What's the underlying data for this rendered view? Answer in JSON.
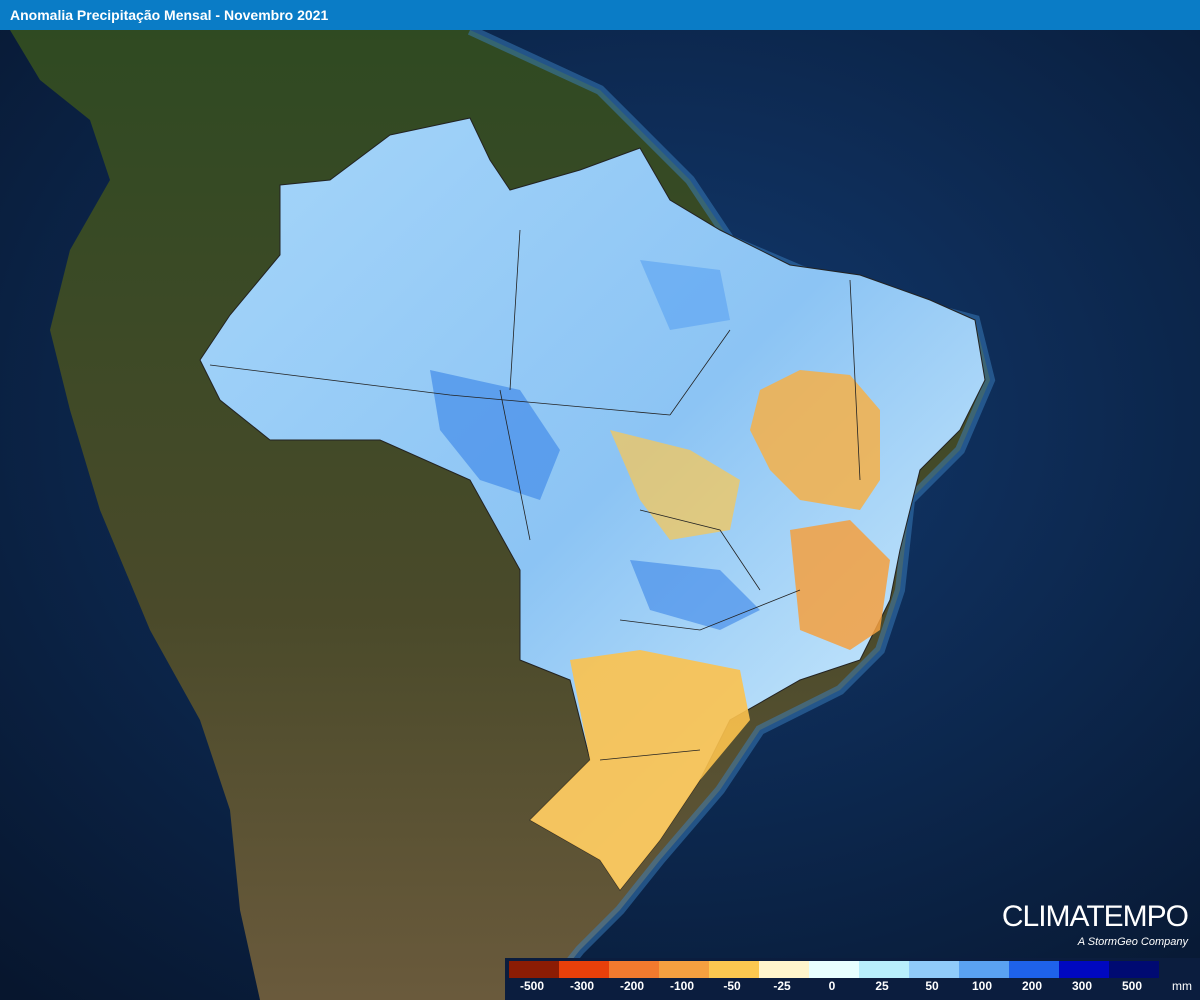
{
  "header": {
    "title": "Anomalia Precipitação Mensal - Novembro 2021"
  },
  "legend": {
    "unit": "mm",
    "classes": [
      {
        "value": -500,
        "color": "#8b1c04"
      },
      {
        "value": -300,
        "color": "#e8400a"
      },
      {
        "value": -200,
        "color": "#f27a2e"
      },
      {
        "value": -100,
        "color": "#f5a040"
      },
      {
        "value": -50,
        "color": "#fcc850"
      },
      {
        "value": -25,
        "color": "#fff5cc"
      },
      {
        "value": 0,
        "color": "#e8ffff"
      },
      {
        "value": 25,
        "color": "#b8eefc"
      },
      {
        "value": 50,
        "color": "#90cbfa"
      },
      {
        "value": 100,
        "color": "#5aa2f2"
      },
      {
        "value": 200,
        "color": "#1e62ea"
      },
      {
        "value": 300,
        "color": "#0008c0"
      },
      {
        "value": 500,
        "color": "#000a72"
      }
    ]
  },
  "logo": {
    "brand": "CLIMATEMPO",
    "tagline": "A StormGeo Company"
  }
}
